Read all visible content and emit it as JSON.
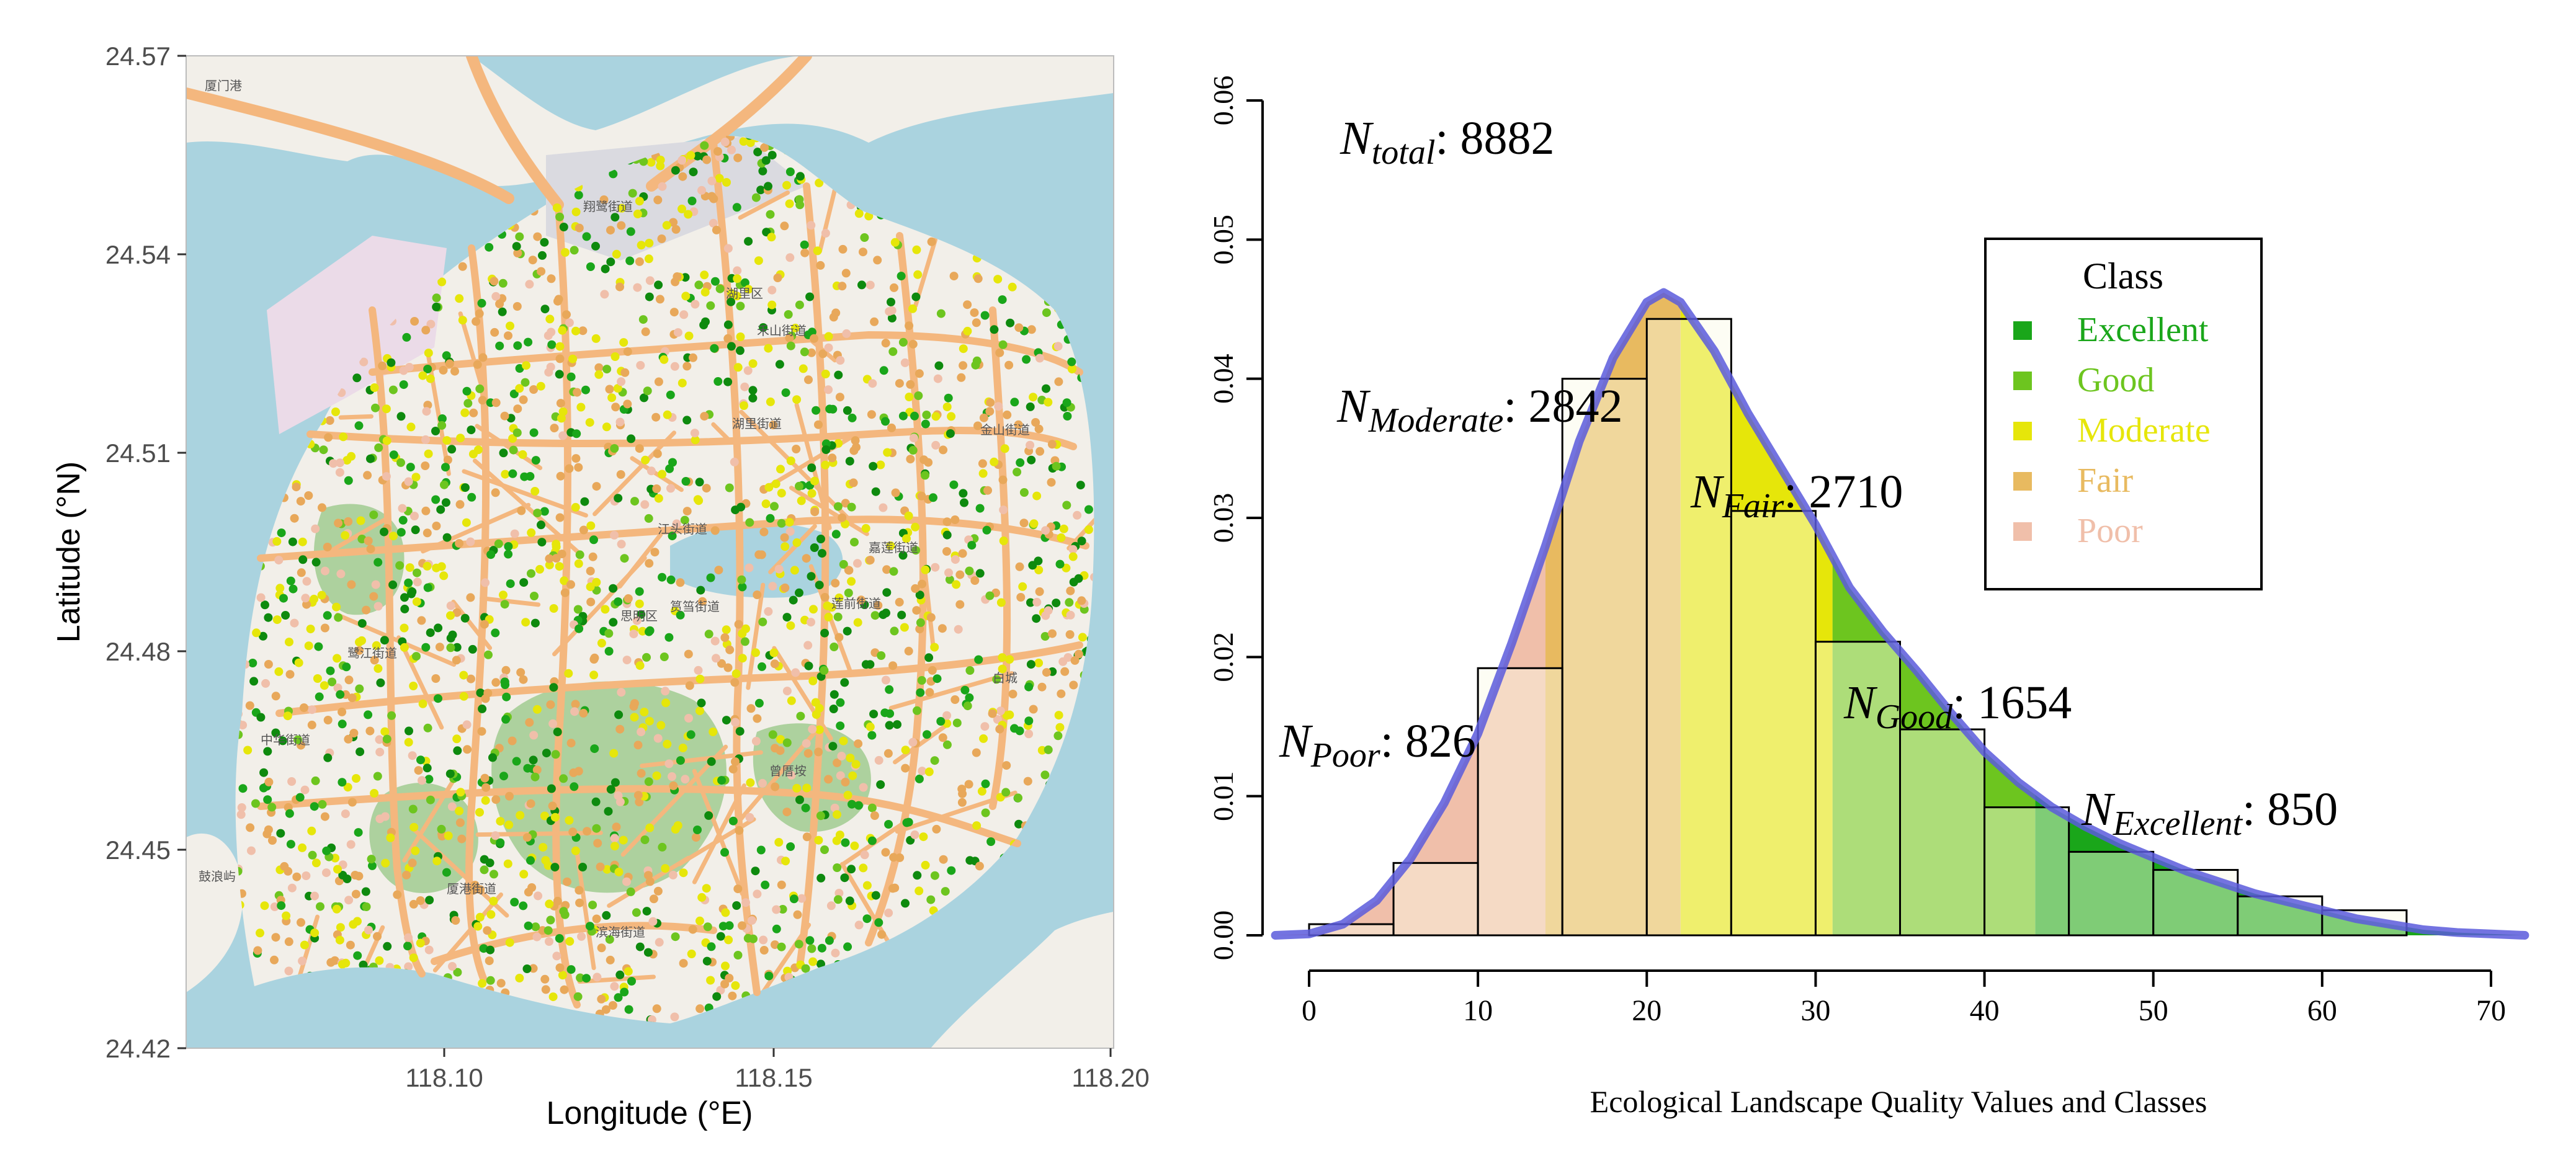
{
  "map_panel": {
    "xlabel": "Longitude (°E)",
    "ylabel": "Latitude (°N)",
    "x_ticks": [
      "118.10",
      "118.15",
      "118.20"
    ],
    "y_ticks": [
      "24.57",
      "24.54",
      "24.51",
      "24.48",
      "24.45",
      "24.42"
    ],
    "colors": {
      "sea": "#aad3df",
      "land": "#f2efe9",
      "park": "#add19e",
      "road": "#f4b77e",
      "industrial": "#ebdbe8",
      "airport": "#dadae0"
    },
    "map_labels": [
      "厦门港",
      "翔鹭街道",
      "湖里街道",
      "禾山街道",
      "金山街道",
      "江头街道",
      "筼筜街道",
      "莲前街道",
      "嘉莲街道",
      "中华街道",
      "鹭江街道",
      "滨海街道",
      "厦港街道",
      "曾厝垵",
      "湖里区",
      "思明区",
      "白城",
      "鼓浪屿"
    ]
  },
  "chart_data": {
    "type": "bar",
    "subtype": "histogram with density curve",
    "xlabel": "Ecological Landscape Quality Values and Classes",
    "ylabel": "",
    "xlim": [
      0,
      70
    ],
    "ylim": [
      0,
      0.06
    ],
    "x_ticks": [
      0,
      10,
      20,
      30,
      40,
      50,
      60,
      70
    ],
    "y_ticks": [
      "0.00",
      "0.01",
      "0.02",
      "0.03",
      "0.04",
      "0.05",
      "0.06"
    ],
    "bins": {
      "breaks": [
        0,
        5,
        10,
        15,
        20,
        25,
        30,
        35,
        40,
        45,
        50,
        55,
        60,
        65
      ],
      "density": [
        0.0008,
        0.0052,
        0.0192,
        0.04,
        0.0443,
        0.0305,
        0.0211,
        0.0148,
        0.0092,
        0.006,
        0.0047,
        0.0028,
        0.0018
      ]
    },
    "density_curve": {
      "x": [
        -2,
        0,
        2,
        4,
        6,
        8,
        10,
        12,
        14,
        16,
        18,
        20,
        21,
        22,
        24,
        26,
        28,
        30,
        32,
        34,
        36,
        38,
        40,
        42,
        44,
        46,
        48,
        50,
        52,
        54,
        56,
        58,
        60,
        62,
        64,
        66,
        68,
        70,
        72
      ],
      "y": [
        0.0,
        0.0001,
        0.0008,
        0.0025,
        0.0055,
        0.0095,
        0.0145,
        0.021,
        0.028,
        0.0355,
        0.0415,
        0.0455,
        0.0462,
        0.0455,
        0.042,
        0.0375,
        0.0335,
        0.0295,
        0.025,
        0.0218,
        0.019,
        0.016,
        0.0132,
        0.011,
        0.0092,
        0.0078,
        0.0066,
        0.0056,
        0.0046,
        0.0038,
        0.003,
        0.0024,
        0.0018,
        0.0012,
        0.0008,
        0.0004,
        0.0002,
        0.0001,
        0.0
      ]
    },
    "classes": [
      {
        "name": "Excellent",
        "from": 43,
        "to": 72,
        "color": "#1aa61a"
      },
      {
        "name": "Good",
        "from": 31,
        "to": 43,
        "color": "#6dc51f"
      },
      {
        "name": "Moderate",
        "from": 22,
        "to": 31,
        "color": "#e6e60a"
      },
      {
        "name": "Fair",
        "from": 14,
        "to": 22,
        "color": "#e8ba60"
      },
      {
        "name": "Poor",
        "from": -2,
        "to": 14,
        "color": "#f0bfaa"
      }
    ],
    "curve_color": "#5b5bdc",
    "legend": {
      "title": "Class",
      "position": "top-right",
      "entries": [
        "Excellent",
        "Good",
        "Moderate",
        "Fair",
        "Poor"
      ]
    },
    "annotations": {
      "total": {
        "sub": "total",
        "value": ": 8882"
      },
      "moderate": {
        "sub": "Moderate",
        "value": ": 2842"
      },
      "fair": {
        "sub": "Fair",
        "value": ": 2710"
      },
      "good": {
        "sub": "Good",
        "value": ": 1654"
      },
      "poor": {
        "sub": "Poor",
        "value": ": 826"
      },
      "excellent": {
        "sub": "Excellent",
        "value": ": 850"
      }
    }
  }
}
